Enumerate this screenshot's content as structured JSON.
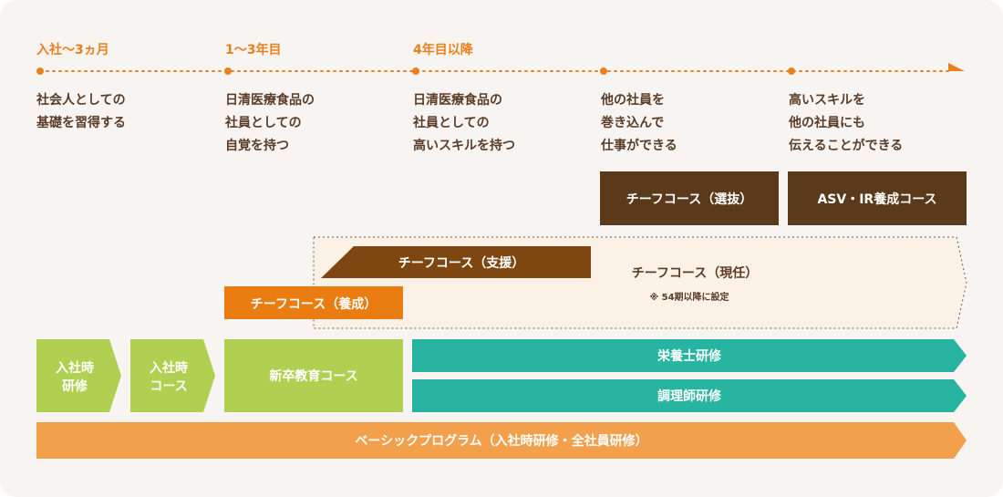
{
  "timeline": {
    "phases": [
      "入社〜3ヵ月",
      "1〜3年目",
      "4年目以降"
    ],
    "goals": [
      [
        "社会人としての",
        "基礎を習得する"
      ],
      [
        "日清医療食品の",
        "社員としての",
        "自覚を持つ"
      ],
      [
        "日清医療食品の",
        "社員としての",
        "高いスキルを持つ"
      ],
      [
        "他の社員を",
        "巻き込んで",
        "仕事ができる"
      ],
      [
        "高いスキルを",
        "他の社員にも",
        "伝えることができる"
      ]
    ]
  },
  "courses": {
    "chief_selection": "チーフコース（選抜）",
    "asv_ir": "ASV・IR養成コース",
    "chief_support": "チーフコース（支援）",
    "chief_current": "チーフコース（現任）",
    "chief_current_note": "※ 54期以降に設定",
    "chief_training": "チーフコース（養成）"
  },
  "trainings": {
    "entry_training": [
      "入社時",
      "研修"
    ],
    "entry_course": [
      "入社時",
      "コース"
    ],
    "new_grad": "新卒教育コース",
    "dietitian": "栄養士研修",
    "cook": "調理師研修",
    "basic": "ベーシックプログラム（入社時研修・全社員研修）"
  },
  "colors": {
    "orange_text": "#e9801e",
    "dark_brown": "#5a3a1a",
    "mid_brown": "#7e4712",
    "orange_box": "#ea7d12",
    "green": "#afd050",
    "teal": "#27b4a0",
    "light_orange": "#f2a04c"
  }
}
